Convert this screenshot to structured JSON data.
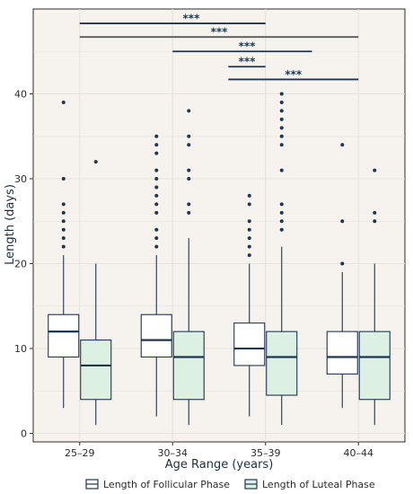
{
  "chart_data": {
    "type": "box",
    "xlabel": "Age Range (years)",
    "ylabel": "Length (days)",
    "categories": [
      "25–29",
      "30–34",
      "35–39",
      "40–44"
    ],
    "yticks": [
      0,
      10,
      20,
      30,
      40
    ],
    "ylim": [
      -1,
      50
    ],
    "grid": true,
    "legend_position": "bottom",
    "colors": {
      "panel_bg": "#f6f3ef",
      "grid": "#e6e1da",
      "follicular_fill": "#ffffff",
      "luteal_fill": "#ddf0e4",
      "stroke": "#1f3550",
      "bracket_alt": "#5a5a5a"
    },
    "series": [
      {
        "name": "Length of Follicular Phase",
        "boxes": [
          {
            "min": 3,
            "q1": 9,
            "median": 12,
            "q3": 14,
            "max": 21,
            "outliers": [
              22,
              23,
              24,
              25,
              26,
              27,
              30,
              39
            ]
          },
          {
            "min": 2,
            "q1": 9,
            "median": 11,
            "q3": 14,
            "max": 21,
            "outliers": [
              22,
              23,
              24,
              26,
              27,
              28,
              29,
              30,
              31,
              33,
              34,
              35
            ]
          },
          {
            "min": 2,
            "q1": 8,
            "median": 10,
            "q3": 13,
            "max": 20,
            "outliers": [
              21,
              22,
              23,
              24,
              25,
              27,
              28
            ]
          },
          {
            "min": 3,
            "q1": 7,
            "median": 9,
            "q3": 12,
            "max": 19,
            "outliers": [
              20,
              25,
              34
            ]
          }
        ]
      },
      {
        "name": "Length of Luteal Phase",
        "boxes": [
          {
            "min": 1,
            "q1": 4,
            "median": 8,
            "q3": 11,
            "max": 20,
            "outliers": [
              32
            ]
          },
          {
            "min": 1,
            "q1": 4,
            "median": 9,
            "q3": 12,
            "max": 23,
            "outliers": [
              26,
              27,
              30,
              31,
              34,
              35,
              38
            ]
          },
          {
            "min": 1,
            "q1": 4.5,
            "median": 9,
            "q3": 12,
            "max": 22,
            "outliers": [
              24,
              25,
              26,
              27,
              31,
              34,
              35,
              36,
              37,
              38,
              39,
              40
            ]
          },
          {
            "min": 1,
            "q1": 4,
            "median": 9,
            "q3": 12,
            "max": 20,
            "outliers": [
              25,
              26,
              31
            ]
          }
        ]
      }
    ],
    "significance": [
      {
        "from": 0,
        "to": 2,
        "label": "***",
        "y": 48.3,
        "label_y": 48.9,
        "label_cat": 1.2,
        "color": "stroke"
      },
      {
        "from": 0,
        "to": 3,
        "label": "***",
        "y": 46.7,
        "label_y": 47.3,
        "label_cat": 1.5,
        "color": "bracket_alt"
      },
      {
        "from": 1,
        "to": 2.5,
        "label": "***",
        "y": 45.0,
        "label_y": 45.6,
        "label_cat": 1.8,
        "color": "stroke"
      },
      {
        "from": 1.6,
        "to": 2,
        "label": "***",
        "y": 43.2,
        "label_y": 43.8,
        "label_cat": 1.8,
        "color": "stroke"
      },
      {
        "from": 1.6,
        "to": 3,
        "label": "***",
        "y": 41.7,
        "label_y": 42.3,
        "label_cat": 2.3,
        "color": "stroke"
      }
    ]
  }
}
